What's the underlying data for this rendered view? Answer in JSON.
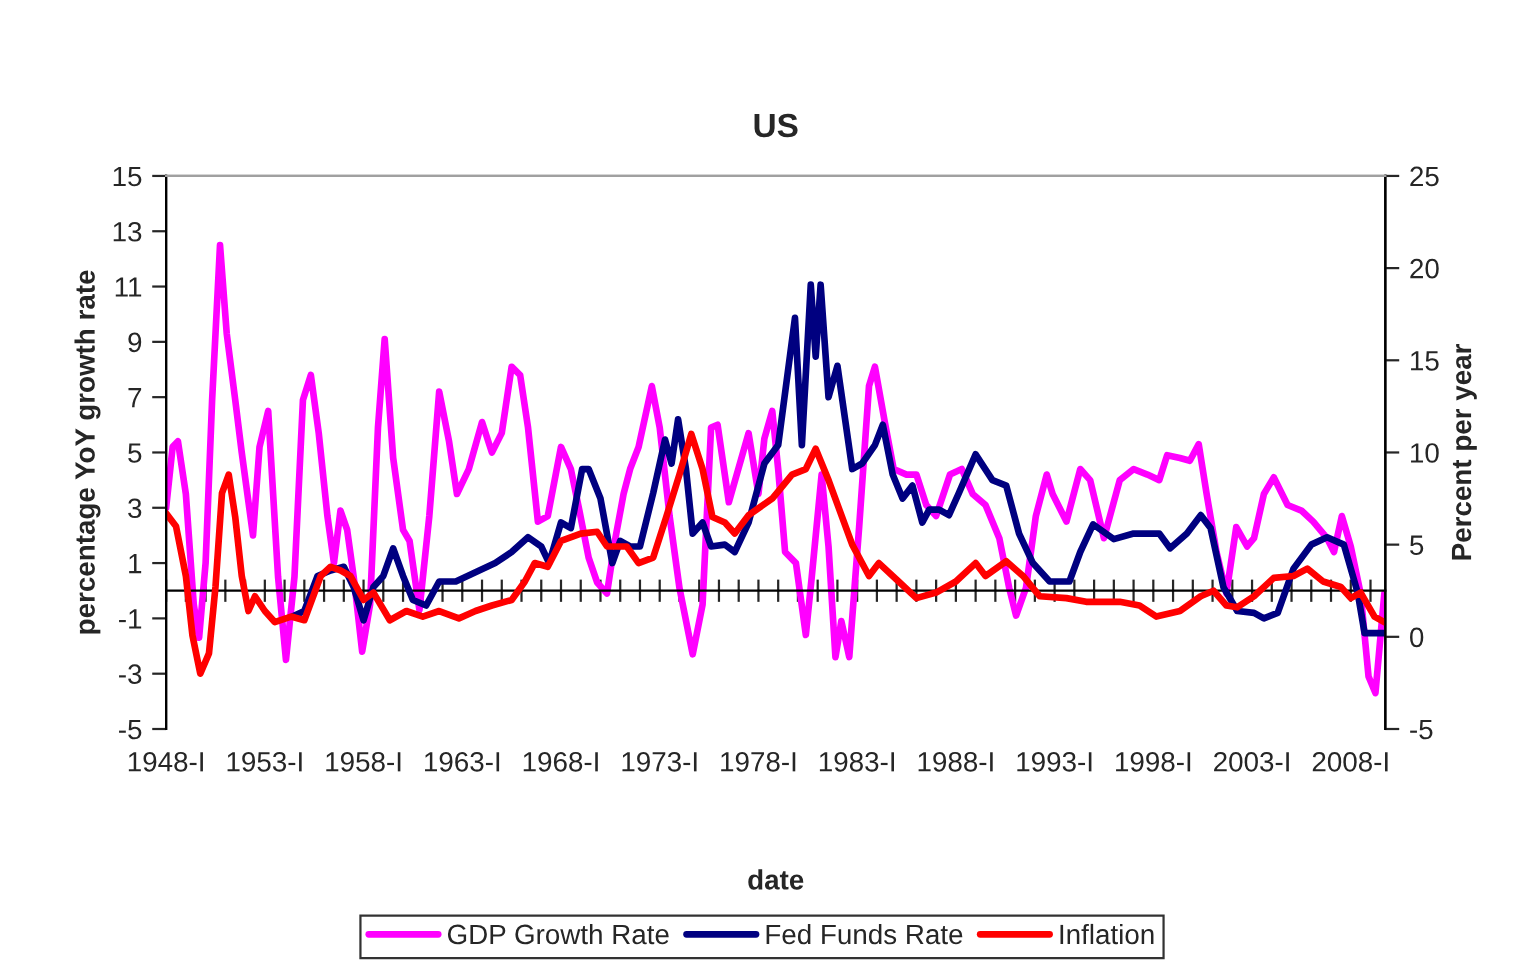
{
  "chart_data": {
    "type": "line",
    "title": "US",
    "xlabel": "date",
    "ylabel": "percentage YoY growth rate",
    "y2label": "Percent per year",
    "xlim": [
      1948,
      2009.75
    ],
    "ylim": [
      -5,
      15
    ],
    "yticks": [
      -5,
      -3,
      -1,
      1,
      3,
      5,
      7,
      9,
      11,
      13,
      15
    ],
    "y2lim": [
      -5,
      25
    ],
    "y2ticks": [
      -5,
      0,
      5,
      10,
      15,
      20,
      25
    ],
    "xticks": [
      {
        "value": 1948,
        "label": "1948-I"
      },
      {
        "value": 1949,
        "label": null
      },
      {
        "value": 1950,
        "label": null
      },
      {
        "value": 1951,
        "label": null
      },
      {
        "value": 1952,
        "label": null
      },
      {
        "value": 1953,
        "label": "1953-I"
      },
      {
        "value": 1954,
        "label": null
      },
      {
        "value": 1955,
        "label": null
      },
      {
        "value": 1956,
        "label": null
      },
      {
        "value": 1957,
        "label": null
      },
      {
        "value": 1958,
        "label": "1958-I"
      },
      {
        "value": 1959,
        "label": null
      },
      {
        "value": 1960,
        "label": null
      },
      {
        "value": 1961,
        "label": null
      },
      {
        "value": 1962,
        "label": null
      },
      {
        "value": 1963,
        "label": "1963-I"
      },
      {
        "value": 1964,
        "label": null
      },
      {
        "value": 1965,
        "label": null
      },
      {
        "value": 1966,
        "label": null
      },
      {
        "value": 1967,
        "label": null
      },
      {
        "value": 1968,
        "label": "1968-I"
      },
      {
        "value": 1969,
        "label": null
      },
      {
        "value": 1970,
        "label": null
      },
      {
        "value": 1971,
        "label": null
      },
      {
        "value": 1972,
        "label": null
      },
      {
        "value": 1973,
        "label": "1973-I"
      },
      {
        "value": 1974,
        "label": null
      },
      {
        "value": 1975,
        "label": null
      },
      {
        "value": 1976,
        "label": null
      },
      {
        "value": 1977,
        "label": null
      },
      {
        "value": 1978,
        "label": "1978-I"
      },
      {
        "value": 1979,
        "label": null
      },
      {
        "value": 1980,
        "label": null
      },
      {
        "value": 1981,
        "label": null
      },
      {
        "value": 1982,
        "label": null
      },
      {
        "value": 1983,
        "label": "1983-I"
      },
      {
        "value": 1984,
        "label": null
      },
      {
        "value": 1985,
        "label": null
      },
      {
        "value": 1986,
        "label": null
      },
      {
        "value": 1987,
        "label": null
      },
      {
        "value": 1988,
        "label": "1988-I"
      },
      {
        "value": 1989,
        "label": null
      },
      {
        "value": 1990,
        "label": null
      },
      {
        "value": 1991,
        "label": null
      },
      {
        "value": 1992,
        "label": null
      },
      {
        "value": 1993,
        "label": "1993-I"
      },
      {
        "value": 1994,
        "label": null
      },
      {
        "value": 1995,
        "label": null
      },
      {
        "value": 1996,
        "label": null
      },
      {
        "value": 1997,
        "label": null
      },
      {
        "value": 1998,
        "label": "1998-I"
      },
      {
        "value": 1999,
        "label": null
      },
      {
        "value": 2000,
        "label": null
      },
      {
        "value": 2001,
        "label": null
      },
      {
        "value": 2002,
        "label": null
      },
      {
        "value": 2003,
        "label": "2003-I"
      },
      {
        "value": 2004,
        "label": null
      },
      {
        "value": 2005,
        "label": null
      },
      {
        "value": 2006,
        "label": null
      },
      {
        "value": 2007,
        "label": null
      },
      {
        "value": 2008,
        "label": "2008-I"
      },
      {
        "value": 2009,
        "label": null
      }
    ],
    "legend": "bottom",
    "grid": false,
    "series": [
      {
        "name": "GDP Growth Rate",
        "color": "#ff00ff",
        "x": [
          1948.0,
          1948.33,
          1948.6,
          1949.0,
          1949.4,
          1949.67,
          1950.0,
          1950.33,
          1950.73,
          1951.07,
          1951.5,
          1951.83,
          1952.4,
          1952.73,
          1953.17,
          1953.67,
          1954.07,
          1954.5,
          1954.93,
          1955.33,
          1955.73,
          1956.17,
          1956.5,
          1956.83,
          1957.17,
          1957.5,
          1957.93,
          1958.33,
          1958.73,
          1959.07,
          1959.5,
          1960.0,
          1960.33,
          1960.83,
          1961.33,
          1961.83,
          1962.33,
          1962.73,
          1963.33,
          1964.0,
          1964.5,
          1965.0,
          1965.5,
          1965.93,
          1966.33,
          1966.83,
          1967.33,
          1968.0,
          1968.5,
          1968.93,
          1969.4,
          1969.83,
          1970.33,
          1970.73,
          1971.17,
          1971.5,
          1971.93,
          1972.6,
          1973.0,
          1973.5,
          1974.0,
          1974.67,
          1975.17,
          1975.6,
          1975.93,
          1976.5,
          1977.5,
          1978.0,
          1978.3,
          1978.7,
          1979.0,
          1979.35,
          1979.9,
          1980.4,
          1980.7,
          1981.2,
          1981.55,
          1981.9,
          1982.2,
          1982.6,
          1983.1,
          1983.6,
          1983.9,
          1984.4,
          1984.85,
          1985.5,
          1986.0,
          1986.5,
          1987.0,
          1987.7,
          1988.3,
          1988.85,
          1989.5,
          1990.2,
          1990.7,
          1991.05,
          1991.55,
          1992.05,
          1992.6,
          1992.9,
          1993.6,
          1994.3,
          1994.8,
          1995.5,
          1996.3,
          1997.0,
          1997.7,
          1998.3,
          1998.7,
          1999.35,
          1999.85,
          2000.3,
          2000.7,
          2001.2,
          2001.7,
          2002.2,
          2002.75,
          2003.1,
          2003.6,
          2004.1,
          2004.8,
          2005.5,
          2006.1,
          2006.8,
          2007.15,
          2007.55,
          2008.0,
          2008.5,
          2008.9,
          2009.25,
          2009.7
        ],
        "values": [
          3.0,
          5.2,
          5.4,
          3.5,
          -0.5,
          -1.7,
          1.0,
          6.9,
          12.5,
          9.3,
          6.9,
          5.0,
          2.0,
          5.2,
          6.5,
          0.5,
          -2.5,
          0.5,
          6.9,
          7.8,
          5.7,
          2.7,
          1.0,
          2.9,
          2.2,
          0.5,
          -2.2,
          -0.5,
          5.9,
          9.1,
          4.8,
          2.2,
          1.8,
          -0.7,
          2.7,
          7.2,
          5.4,
          3.5,
          4.4,
          6.1,
          5.0,
          5.7,
          8.1,
          7.8,
          5.9,
          2.5,
          2.7,
          5.2,
          4.4,
          2.9,
          1.2,
          0.3,
          -0.1,
          1.8,
          3.5,
          4.4,
          5.2,
          7.4,
          5.9,
          2.7,
          0.1,
          -2.3,
          -0.5,
          5.9,
          6.0,
          3.2,
          5.7,
          3.5,
          5.5,
          6.5,
          4.4,
          1.4,
          1.0,
          -1.6,
          0.5,
          4.2,
          1.6,
          -2.4,
          -1.1,
          -2.4,
          2.3,
          7.4,
          8.1,
          6.1,
          4.4,
          4.2,
          4.2,
          3.1,
          2.7,
          4.2,
          4.4,
          3.5,
          3.1,
          1.9,
          0.1,
          -0.9,
          0.1,
          2.7,
          4.2,
          3.5,
          2.5,
          4.4,
          4.0,
          1.9,
          4.0,
          4.4,
          4.2,
          4.0,
          4.9,
          4.8,
          4.7,
          5.3,
          3.5,
          1.4,
          -0.1,
          2.3,
          1.6,
          1.9,
          3.5,
          4.1,
          3.1,
          2.9,
          2.5,
          1.9,
          1.4,
          2.7,
          1.6,
          -0.1,
          -3.1,
          -3.7,
          -0.1
        ]
      },
      {
        "name": "Fed Funds Rate",
        "color": "#000080",
        "axis": "y2",
        "x": [
          1954.4,
          1955.0,
          1955.67,
          1956.33,
          1957.0,
          1957.5,
          1958.0,
          1958.5,
          1959.0,
          1959.5,
          1960.0,
          1960.5,
          1961.17,
          1961.83,
          1962.67,
          1963.67,
          1964.67,
          1965.5,
          1966.33,
          1967.0,
          1967.4,
          1968.0,
          1968.5,
          1969.07,
          1969.4,
          1970.0,
          1970.6,
          1971.0,
          1971.5,
          1972.0,
          1972.67,
          1973.27,
          1973.6,
          1973.93,
          1974.33,
          1974.67,
          1975.17,
          1975.6,
          1976.3,
          1976.8,
          1977.5,
          1978.3,
          1979.0,
          1979.85,
          1980.2,
          1980.65,
          1980.9,
          1981.15,
          1981.55,
          1982.0,
          1982.75,
          1983.25,
          1983.9,
          1984.3,
          1984.8,
          1985.3,
          1985.8,
          1986.3,
          1986.65,
          1987.15,
          1987.65,
          1988.15,
          1989.0,
          1989.85,
          1990.55,
          1991.2,
          1991.9,
          1992.75,
          1993.75,
          1994.3,
          1994.95,
          1996.0,
          1997.0,
          1998.3,
          1998.85,
          1999.7,
          2000.4,
          2000.9,
          2001.55,
          2002.25,
          2003.1,
          2003.6,
          2004.3,
          2005.1,
          2006.0,
          2006.8,
          2007.65,
          2008.35,
          2008.7,
          2009.7
        ],
        "values": [
          1.1,
          1.4,
          3.3,
          3.6,
          3.8,
          2.7,
          0.9,
          2.7,
          3.3,
          4.8,
          3.3,
          2.0,
          1.7,
          3.0,
          3.0,
          3.5,
          4.0,
          4.6,
          5.4,
          4.9,
          4.0,
          6.2,
          5.9,
          9.1,
          9.1,
          7.5,
          4.0,
          5.2,
          4.9,
          4.9,
          7.8,
          10.7,
          9.4,
          11.8,
          9.1,
          5.6,
          6.2,
          4.9,
          5.0,
          4.6,
          6.2,
          9.4,
          10.4,
          17.3,
          10.4,
          19.1,
          15.2,
          19.1,
          13.0,
          14.7,
          9.1,
          9.4,
          10.4,
          11.5,
          8.8,
          7.5,
          8.2,
          6.2,
          6.9,
          6.9,
          6.6,
          7.8,
          9.9,
          8.5,
          8.2,
          5.6,
          4.0,
          3.0,
          3.0,
          4.6,
          6.1,
          5.3,
          5.6,
          5.6,
          4.8,
          5.6,
          6.6,
          5.9,
          2.7,
          1.4,
          1.3,
          1.0,
          1.3,
          3.7,
          5.0,
          5.4,
          5.0,
          2.4,
          0.2,
          0.2
        ]
      },
      {
        "name": "Inflation",
        "color": "#ff0000",
        "axis": "y2",
        "x": [
          1948.0,
          1948.5,
          1949.0,
          1949.33,
          1949.73,
          1950.17,
          1950.5,
          1950.83,
          1951.17,
          1951.5,
          1951.83,
          1952.17,
          1952.5,
          1953.0,
          1953.5,
          1954.33,
          1955.0,
          1955.83,
          1956.33,
          1956.83,
          1957.33,
          1958.0,
          1958.5,
          1959.33,
          1960.17,
          1961.0,
          1961.83,
          1962.83,
          1963.67,
          1964.5,
          1965.5,
          1966.17,
          1966.67,
          1967.33,
          1968.0,
          1969.0,
          1969.83,
          1970.33,
          1971.33,
          1971.93,
          1972.67,
          1973.33,
          1974.0,
          1974.6,
          1975.17,
          1975.67,
          1976.3,
          1976.8,
          1977.5,
          1978.7,
          1979.7,
          1980.4,
          1980.9,
          1981.55,
          1982.75,
          1983.6,
          1984.1,
          1985.1,
          1986.0,
          1987.0,
          1988.0,
          1989.0,
          1989.5,
          1990.55,
          1991.4,
          1992.25,
          1993.6,
          1994.6,
          1996.3,
          1997.3,
          1998.15,
          1999.35,
          2000.4,
          2001.05,
          2001.7,
          2002.25,
          2003.1,
          2004.1,
          2005.1,
          2005.8,
          2006.6,
          2007.5,
          2008.0,
          2008.5,
          2009.2,
          2009.7
        ],
        "values": [
          6.7,
          6.0,
          3.3,
          0.1,
          -2.0,
          -0.9,
          2.7,
          7.8,
          8.8,
          6.5,
          3.3,
          1.4,
          2.2,
          1.4,
          0.8,
          1.1,
          0.9,
          3.3,
          3.8,
          3.6,
          3.3,
          2.0,
          2.4,
          0.9,
          1.4,
          1.1,
          1.4,
          1.0,
          1.4,
          1.7,
          2.0,
          3.0,
          4.0,
          3.8,
          5.2,
          5.6,
          5.7,
          4.9,
          4.9,
          4.0,
          4.3,
          6.5,
          8.8,
          11.0,
          9.1,
          6.5,
          6.2,
          5.6,
          6.6,
          7.5,
          8.8,
          9.1,
          10.2,
          8.5,
          5.0,
          3.3,
          4.0,
          3.0,
          2.1,
          2.4,
          3.0,
          4.0,
          3.3,
          4.1,
          3.3,
          2.2,
          2.1,
          1.9,
          1.9,
          1.7,
          1.1,
          1.4,
          2.2,
          2.5,
          1.7,
          1.6,
          2.2,
          3.2,
          3.3,
          3.7,
          3.0,
          2.7,
          2.1,
          2.4,
          1.1,
          0.8
        ]
      }
    ]
  }
}
